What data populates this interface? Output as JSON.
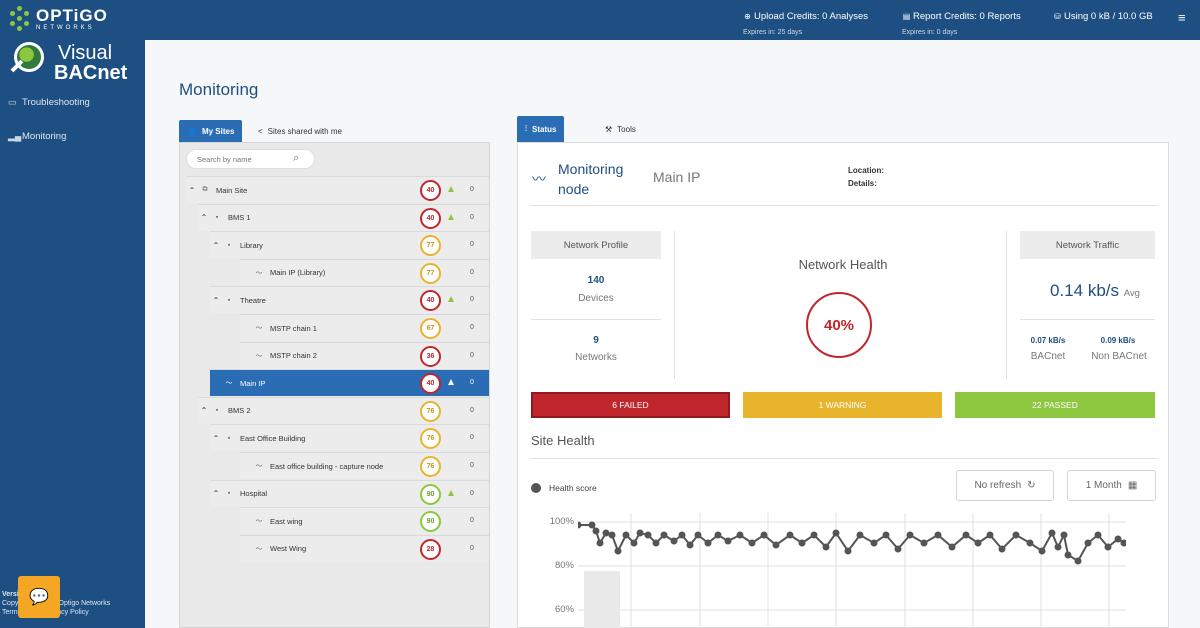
{
  "brand": {
    "name": "OPTiGO",
    "sub": "NETWORKS",
    "app_line1": "Visual",
    "app_line2": "BACnet"
  },
  "header": {
    "upload_credits": "Upload Credits: 0 Analyses",
    "upload_expires": "Expires in: 25 days",
    "report_credits": "Report Credits: 0 Reports",
    "report_expires": "Expires in: 0 days",
    "storage": "Using 0 kB / 10.0 GB",
    "menu_icon": "hamburger-menu-icon"
  },
  "sidebar": {
    "items": [
      {
        "label": "Troubleshooting",
        "icon": "folder-icon"
      },
      {
        "label": "Monitoring",
        "icon": "bar-chart-icon"
      }
    ],
    "footer": {
      "version": "Version:",
      "copyright": "Copyright © 2019 Optigo Networks",
      "links": "Terms of Use Privacy Policy"
    }
  },
  "page": {
    "title": "Monitoring"
  },
  "sites": {
    "tabs": {
      "my_sites": "My Sites",
      "shared": "Sites shared with me"
    },
    "search_placeholder": "Search by name",
    "rows": [
      {
        "label": "Main Site",
        "score": "40",
        "status": "red",
        "arrow": true,
        "zero": "0",
        "chev": "^"
      },
      {
        "label": "BMS 1",
        "score": "40",
        "status": "red",
        "arrow": true,
        "zero": "0",
        "chev": "^"
      },
      {
        "label": "Library",
        "score": "77",
        "status": "yellow",
        "arrow": false,
        "zero": "0",
        "chev": "^"
      },
      {
        "label": "Main IP (Library)",
        "score": "77",
        "status": "yellow",
        "arrow": false,
        "zero": "0",
        "chev": ""
      },
      {
        "label": "Theatre",
        "score": "40",
        "status": "red",
        "arrow": true,
        "zero": "0",
        "chev": "^"
      },
      {
        "label": "MSTP chain 1",
        "score": "67",
        "status": "yellow",
        "arrow": false,
        "zero": "0",
        "chev": ""
      },
      {
        "label": "MSTP chain 2",
        "score": "36",
        "status": "red",
        "arrow": false,
        "zero": "0",
        "chev": ""
      },
      {
        "label": "Main IP",
        "score": "40",
        "status": "red",
        "arrow": true,
        "zero": "0",
        "chev": ""
      },
      {
        "label": "BMS 2",
        "score": "76",
        "status": "yellow",
        "arrow": false,
        "zero": "0",
        "chev": "^"
      },
      {
        "label": "East Office Building",
        "score": "76",
        "status": "yellow",
        "arrow": false,
        "zero": "0",
        "chev": "^"
      },
      {
        "label": "East office building - capture node",
        "score": "76",
        "status": "yellow",
        "arrow": false,
        "zero": "0",
        "chev": ""
      },
      {
        "label": "Hospital",
        "score": "90",
        "status": "green",
        "arrow": true,
        "zero": "0",
        "chev": "^"
      },
      {
        "label": "East wing",
        "score": "90",
        "status": "green",
        "arrow": false,
        "zero": "0",
        "chev": ""
      },
      {
        "label": "West Wing",
        "score": "28",
        "status": "red",
        "arrow": false,
        "zero": "0",
        "chev": ""
      }
    ]
  },
  "status_panel": {
    "tabs": {
      "status": "Status",
      "tools": "Tools"
    },
    "node_title_1": "Monitoring",
    "node_title_2": "node",
    "node_name": "Main IP",
    "location_label": "Location:",
    "details_label": "Details:",
    "network_profile": "Network Profile",
    "devices_count": "140",
    "devices_label": "Devices",
    "networks_count": "9",
    "networks_label": "Networks",
    "network_health_title": "Network Health",
    "network_health_value": "40%",
    "network_traffic": "Network Traffic",
    "traffic_value": "0.14 kb/s",
    "traffic_unit": "Avg",
    "bacnet_value": "0.07 kB/s",
    "bacnet_label": "BACnet",
    "non_bacnet_value": "0.09 kB/s",
    "non_bacnet_label": "Non BACnet",
    "failed": "6 FAILED",
    "warning": "1 WARNING",
    "passed": "22 PASSED",
    "site_health": "Site Health",
    "legend": "Health score",
    "no_refresh": "No refresh",
    "range": "1 Month",
    "y_ticks": [
      "100%",
      "80%",
      "60%"
    ]
  },
  "colors": {
    "brand_blue": "#1e4f82",
    "accent_blue": "#2a6db5",
    "failed": "#c0272d",
    "warning": "#e8b42c",
    "passed": "#8dc63f"
  }
}
